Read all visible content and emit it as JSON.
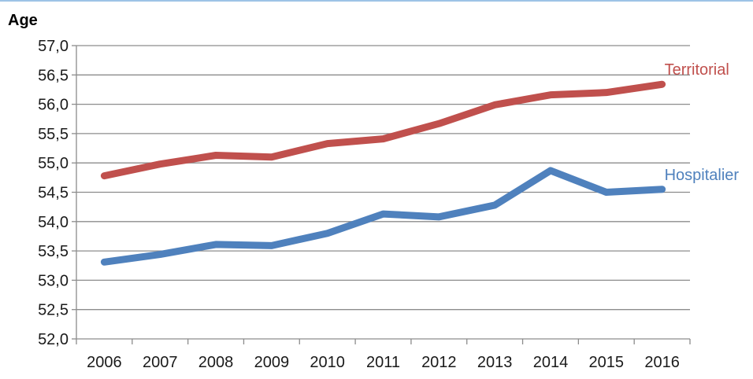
{
  "chart_data": {
    "type": "line",
    "title": "",
    "xlabel": "",
    "ylabel": "Age",
    "categories": [
      "2006",
      "2007",
      "2008",
      "2009",
      "2010",
      "2011",
      "2012",
      "2013",
      "2014",
      "2015",
      "2016"
    ],
    "ylim": [
      52.0,
      57.0
    ],
    "yticks": [
      "52,0",
      "52,5",
      "53,0",
      "53,5",
      "54,0",
      "54,5",
      "55,0",
      "55,5",
      "56,0",
      "56,5",
      "57,0"
    ],
    "grid": true,
    "series": [
      {
        "name": "Territorial",
        "color": "#C0504D",
        "values": [
          54.78,
          54.98,
          55.13,
          55.1,
          55.33,
          55.41,
          55.67,
          55.99,
          56.16,
          56.2,
          56.34
        ]
      },
      {
        "name": "Hospitalier",
        "color": "#4F81BD",
        "values": [
          53.31,
          53.44,
          53.61,
          53.59,
          53.8,
          54.13,
          54.08,
          54.28,
          54.87,
          54.5,
          54.55
        ]
      }
    ]
  }
}
